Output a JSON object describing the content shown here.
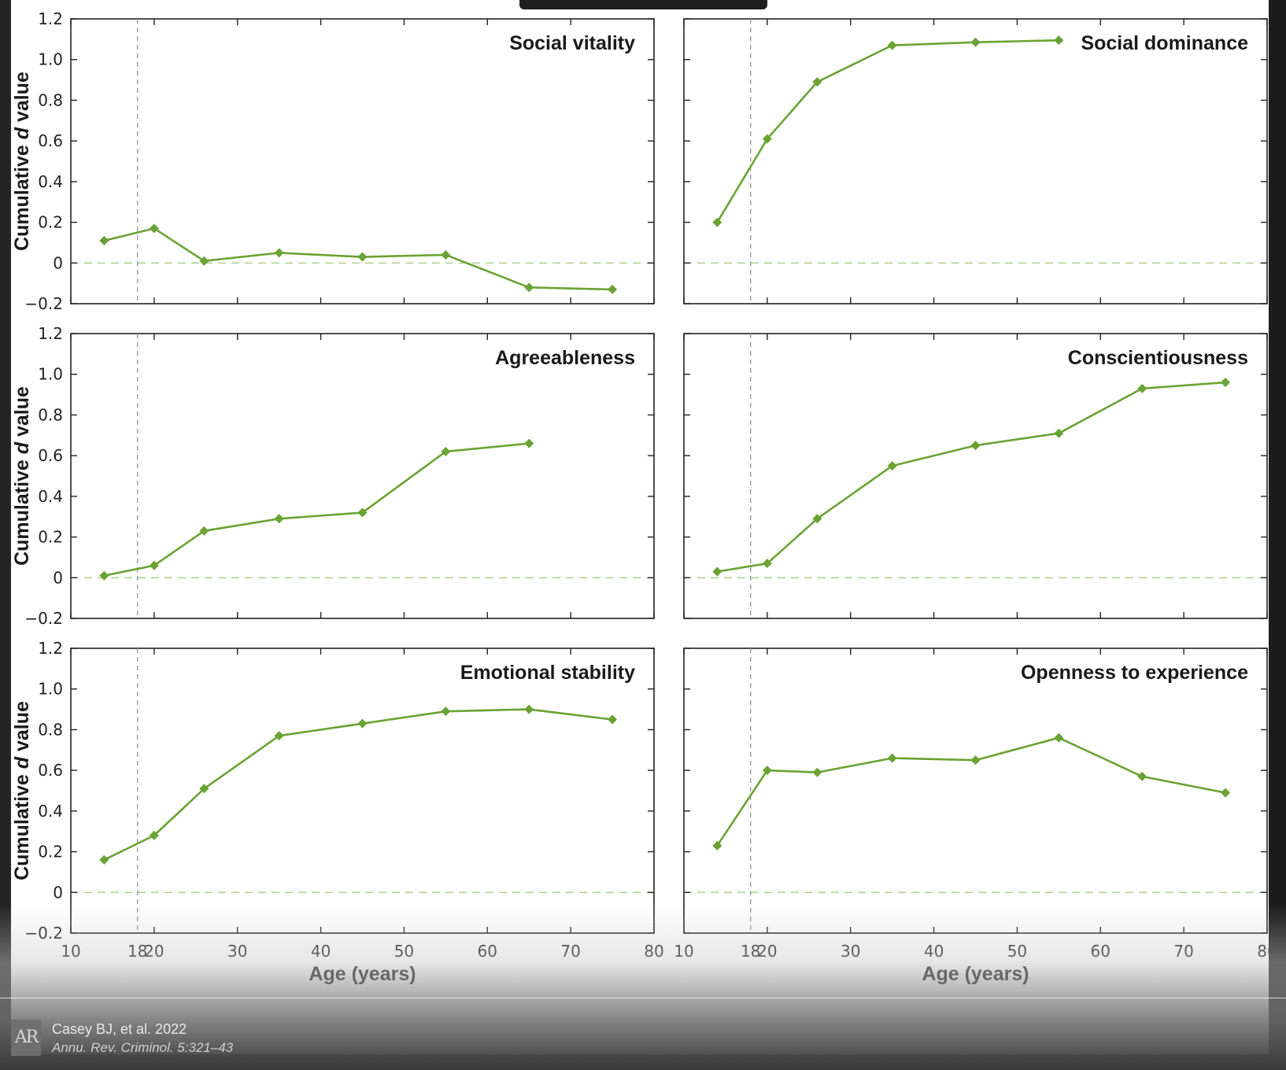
{
  "chart_data": [
    {
      "type": "line",
      "title": "Social vitality",
      "xlabel": "",
      "ylabel": "Cumulative d value",
      "xlim": [
        10,
        80
      ],
      "ylim": [
        -0.2,
        1.2
      ],
      "x": [
        14,
        20,
        26,
        35,
        45,
        55,
        65,
        75
      ],
      "values": [
        0.11,
        0.17,
        0.01,
        0.05,
        0.03,
        0.04,
        -0.12,
        -0.13
      ]
    },
    {
      "type": "line",
      "title": "Social dominance",
      "xlabel": "",
      "ylabel": "",
      "xlim": [
        10,
        80
      ],
      "ylim": [
        -0.2,
        1.2
      ],
      "x": [
        14,
        20,
        26,
        35,
        45,
        55
      ],
      "values": [
        0.2,
        0.61,
        0.89,
        1.07,
        1.085,
        1.095
      ]
    },
    {
      "type": "line",
      "title": "Agreeableness",
      "xlabel": "",
      "ylabel": "Cumulative d value",
      "xlim": [
        10,
        80
      ],
      "ylim": [
        -0.2,
        1.2
      ],
      "x": [
        14,
        20,
        26,
        35,
        45,
        55,
        65
      ],
      "values": [
        0.01,
        0.06,
        0.23,
        0.29,
        0.32,
        0.62,
        0.66
      ]
    },
    {
      "type": "line",
      "title": "Conscientiousness",
      "xlabel": "",
      "ylabel": "",
      "xlim": [
        10,
        80
      ],
      "ylim": [
        -0.2,
        1.2
      ],
      "x": [
        14,
        20,
        26,
        35,
        45,
        55,
        65,
        75
      ],
      "values": [
        0.03,
        0.07,
        0.29,
        0.55,
        0.65,
        0.71,
        0.93,
        0.96
      ]
    },
    {
      "type": "line",
      "title": "Emotional stability",
      "xlabel": "Age (years)",
      "ylabel": "Cumulative d value",
      "xlim": [
        10,
        80
      ],
      "ylim": [
        -0.2,
        1.2
      ],
      "x": [
        14,
        20,
        26,
        35,
        45,
        55,
        65,
        75
      ],
      "values": [
        0.16,
        0.28,
        0.51,
        0.77,
        0.83,
        0.89,
        0.9,
        0.85
      ]
    },
    {
      "type": "line",
      "title": "Openness to experience",
      "xlabel": "Age (years)",
      "ylabel": "",
      "xlim": [
        10,
        80
      ],
      "ylim": [
        -0.2,
        1.2
      ],
      "x": [
        14,
        20,
        26,
        35,
        45,
        55,
        65,
        75
      ],
      "values": [
        0.23,
        0.6,
        0.59,
        0.66,
        0.65,
        0.76,
        0.57,
        0.49
      ]
    }
  ],
  "axes": {
    "y_ticks": [
      -0.2,
      0,
      0.2,
      0.4,
      0.6,
      0.8,
      1.0,
      1.2
    ],
    "y_tick_labels": [
      "−0.2",
      "0",
      "0.2",
      "0.4",
      "0.6",
      "0.8",
      "1.0",
      "1.2"
    ],
    "x_ticks": [
      10,
      18,
      20,
      30,
      40,
      50,
      60,
      70,
      80
    ],
    "x_tick_labels": [
      "10",
      "18",
      "20",
      "30",
      "40",
      "50",
      "60",
      "70",
      "80"
    ],
    "reference_age": 18,
    "reference_value": 0,
    "ylabel_plain": "Cumulative ",
    "ylabel_italic": "d",
    "ylabel_tail": " value"
  },
  "colors": {
    "series": "#6aa334",
    "zero_line": "#b5d199",
    "age_line": "#9a9a9a",
    "axis": "#222222"
  },
  "credit": {
    "logo": "AR",
    "line1": "Casey BJ, et al. 2022",
    "line2": "Annu. Rev. Criminol. 5:321–43"
  }
}
